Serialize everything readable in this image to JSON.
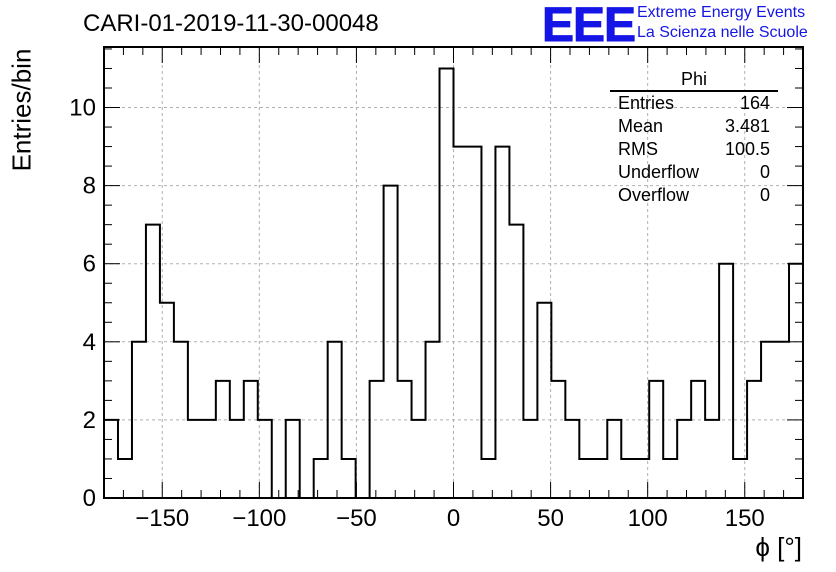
{
  "title": "CARI-01-2019-11-30-00048",
  "logo": {
    "text": "EEE",
    "line1": "Extreme Energy Events",
    "line2": "La Scienza nelle Scuole",
    "color": "#1515e6"
  },
  "stats": {
    "name": "Phi",
    "rows": [
      {
        "label": "Entries",
        "value": "164"
      },
      {
        "label": "Mean",
        "value": "3.481"
      },
      {
        "label": "RMS",
        "value": "100.5"
      },
      {
        "label": "Underflow",
        "value": "0"
      },
      {
        "label": "Overflow",
        "value": "0"
      }
    ]
  },
  "chart_data": {
    "type": "histogram",
    "title": "CARI-01-2019-11-30-00048",
    "xlabel": "ϕ [°]",
    "ylabel": "Entries/bin",
    "xlim": [
      -180,
      180
    ],
    "ylim": [
      0,
      11.55
    ],
    "bin_width": 7.2,
    "x_ticks": [
      -150,
      -100,
      -50,
      0,
      50,
      100,
      150
    ],
    "x_tick_labels": [
      "−150",
      "−100",
      "−50",
      "0",
      "50",
      "100",
      "150"
    ],
    "y_ticks": [
      0,
      2,
      4,
      6,
      8,
      10
    ],
    "y_tick_labels": [
      "0",
      "2",
      "4",
      "6",
      "8",
      "10"
    ],
    "grid": true,
    "values": [
      2,
      1,
      4,
      7,
      5,
      4,
      2,
      2,
      3,
      2,
      3,
      2,
      0,
      2,
      0,
      1,
      4,
      1,
      0,
      3,
      8,
      3,
      2,
      4,
      11,
      9,
      9,
      1,
      9,
      7,
      2,
      5,
      3,
      2,
      1,
      1,
      2,
      1,
      1,
      3,
      1,
      2,
      3,
      2,
      6,
      1,
      3,
      4,
      4,
      6
    ]
  }
}
